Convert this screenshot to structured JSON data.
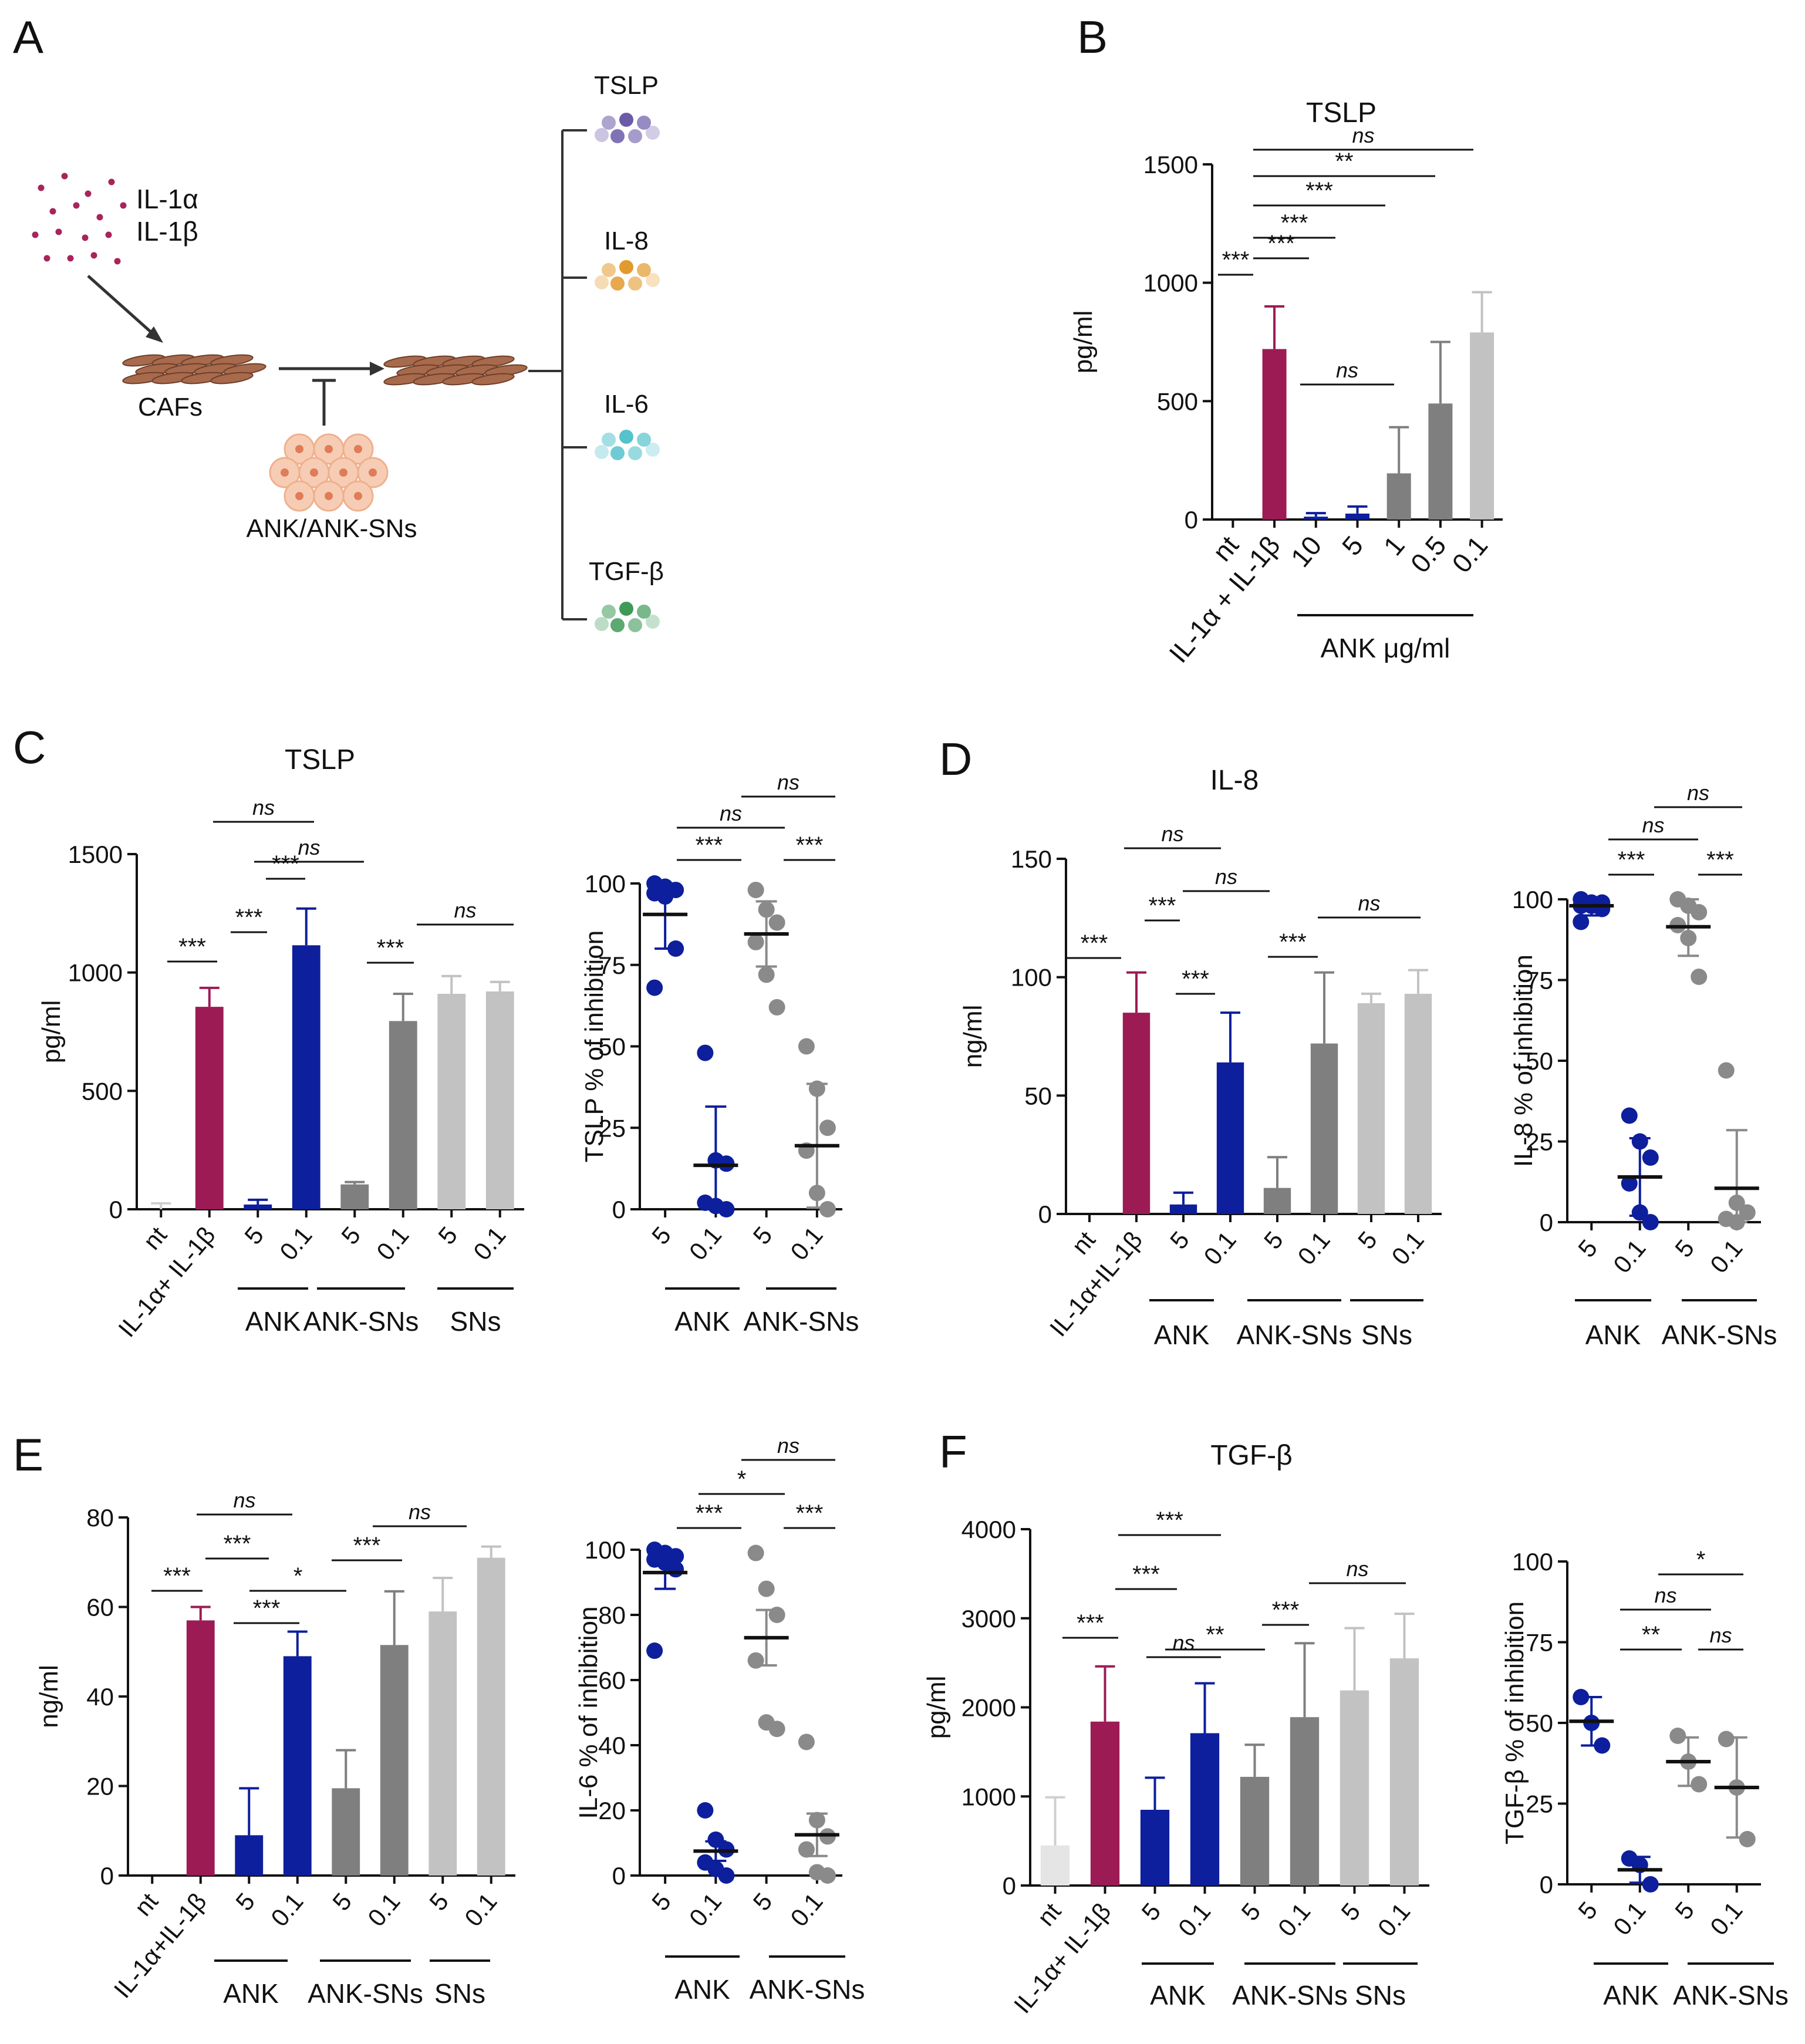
{
  "colors": {
    "nt": "#e5e5e5",
    "il1": "#9c1b54",
    "ank": "#0d1f9c",
    "anksn": "#7f7f7f",
    "sn": "#c2c2c2",
    "axis": "#111111",
    "gray_dot": "#8a8a8a"
  },
  "panel_a": {
    "letter": "A",
    "cytokine1": "IL-1α",
    "cytokine2": "IL-1β",
    "caf_label": "CAFs",
    "treatment_label": "ANK/ANK-SNs",
    "outputs": [
      {
        "label": "TSLP",
        "color": "#6a5aa8"
      },
      {
        "label": "IL-8",
        "color": "#e39a2c"
      },
      {
        "label": "IL-6",
        "color": "#55c2cc"
      },
      {
        "label": "TGF-β",
        "color": "#3f9a58"
      }
    ]
  },
  "chart_data": [
    {
      "id": "B",
      "type": "bar",
      "letter": "B",
      "title": "TSLP",
      "ylabel": "pg/ml",
      "ylim": [
        0,
        1500
      ],
      "yticks": [
        "0",
        "500",
        "1000",
        "1500"
      ],
      "categories": [
        "nt",
        "IL-1α + IL-1β",
        "10",
        "5",
        "1",
        "0.5",
        "0.1"
      ],
      "values": [
        0,
        720,
        12,
        25,
        195,
        490,
        790
      ],
      "errors": [
        0,
        180,
        15,
        30,
        195,
        260,
        170
      ],
      "groups": [
        {
          "label": "ANK μg/ml"
        }
      ],
      "sig": [
        {
          "label": "***",
          "italic": false
        },
        {
          "label": "***",
          "italic": false
        },
        {
          "label": "***",
          "italic": false
        },
        {
          "label": "***",
          "italic": false
        },
        {
          "label": "**",
          "italic": false
        },
        {
          "label": "ns",
          "italic": true
        },
        {
          "label": "ns",
          "italic": true
        }
      ]
    },
    {
      "id": "C1",
      "type": "bar",
      "letter": "C",
      "title": "TSLP",
      "ylabel": "pg/ml",
      "ylim": [
        0,
        1500
      ],
      "yticks": [
        "0",
        "500",
        "1000",
        "1500"
      ],
      "categories": [
        "nt",
        "IL-1α+ IL-1β",
        "5",
        "0.1",
        "5",
        "0.1",
        "5",
        "0.1"
      ],
      "values": [
        0,
        855,
        20,
        1115,
        105,
        795,
        910,
        920
      ],
      "errors": [
        25,
        80,
        20,
        155,
        10,
        115,
        75,
        40
      ],
      "groups": [
        {
          "label": "ANK"
        },
        {
          "label": "ANK-SNs"
        },
        {
          "label": "SNs"
        }
      ],
      "sig": [
        {
          "label": "***",
          "italic": false
        },
        {
          "label": "***",
          "italic": false
        },
        {
          "label": "***",
          "italic": false
        },
        {
          "label": "ns",
          "italic": true
        },
        {
          "label": "ns",
          "italic": true
        },
        {
          "label": "***",
          "italic": false
        },
        {
          "label": "ns",
          "italic": true
        }
      ]
    },
    {
      "id": "C2",
      "type": "scatter",
      "ylabel": "TSLP % of inhibition",
      "ylim": [
        0,
        100
      ],
      "yticks": [
        "0",
        "25",
        "50",
        "75",
        "100"
      ],
      "categories": [
        "5",
        "0.1",
        "5",
        "0.1"
      ],
      "points": [
        [
          100,
          99,
          98,
          97,
          96,
          80,
          68
        ],
        [
          48,
          15,
          14,
          2,
          1,
          0
        ],
        [
          98,
          92,
          88,
          82,
          72,
          62
        ],
        [
          50,
          37,
          25,
          18,
          5,
          0
        ]
      ],
      "means": [
        90.5,
        13.5,
        84.5,
        19.5
      ],
      "sd": [
        10.5,
        18,
        10,
        19
      ],
      "groups": [
        {
          "label": "ANK"
        },
        {
          "label": "ANK-SNs"
        }
      ],
      "sig": [
        {
          "label": "***",
          "italic": false
        },
        {
          "label": "***",
          "italic": false
        },
        {
          "label": "ns",
          "italic": true
        },
        {
          "label": "ns",
          "italic": true
        }
      ]
    },
    {
      "id": "D1",
      "type": "bar",
      "letter": "D",
      "title": "IL-8",
      "ylabel": "ng/ml",
      "ylim": [
        0,
        150
      ],
      "yticks": [
        "0",
        "50",
        "100",
        "150"
      ],
      "categories": [
        "nt",
        "IL-1α+IL-1β",
        "5",
        "0.1",
        "5",
        "0.1",
        "5",
        "0.1"
      ],
      "values": [
        0,
        85,
        4,
        64,
        11,
        72,
        89,
        93
      ],
      "errors": [
        0,
        17,
        5,
        21,
        13,
        30,
        4,
        10
      ],
      "groups": [
        {
          "label": "ANK"
        },
        {
          "label": "ANK-SNs"
        },
        {
          "label": "SNs"
        }
      ],
      "sig": [
        {
          "label": "***",
          "italic": false
        },
        {
          "label": "***",
          "italic": false
        },
        {
          "label": "***",
          "italic": false
        },
        {
          "label": "ns",
          "italic": true
        },
        {
          "label": "ns",
          "italic": true
        },
        {
          "label": "***",
          "italic": false
        },
        {
          "label": "ns",
          "italic": true
        }
      ]
    },
    {
      "id": "D2",
      "type": "scatter",
      "ylabel": "IL-8 % of inhibition",
      "ylim": [
        0,
        100
      ],
      "yticks": [
        "0",
        "25",
        "50",
        "75",
        "100"
      ],
      "categories": [
        "5",
        "0.1",
        "5",
        "0.1"
      ],
      "points": [
        [
          100,
          99,
          99,
          98,
          98,
          97,
          93
        ],
        [
          33,
          25,
          20,
          12,
          3,
          0
        ],
        [
          100,
          98,
          96,
          92,
          88,
          76
        ],
        [
          47,
          6,
          3,
          1,
          0
        ]
      ],
      "means": [
        98,
        14,
        91.5,
        10.5
      ],
      "sd": [
        3,
        12,
        9,
        18
      ],
      "groups": [
        {
          "label": "ANK"
        },
        {
          "label": "ANK-SNs"
        }
      ],
      "sig": [
        {
          "label": "***",
          "italic": false
        },
        {
          "label": "***",
          "italic": false
        },
        {
          "label": "ns",
          "italic": true
        },
        {
          "label": "ns",
          "italic": true
        }
      ]
    },
    {
      "id": "E1",
      "type": "bar",
      "letter": "E",
      "title": "",
      "ylabel": "ng/ml",
      "ylim": [
        0,
        80
      ],
      "yticks": [
        "0",
        "20",
        "40",
        "60",
        "80"
      ],
      "categories": [
        "nt",
        "IL-1α+IL-1β",
        "5",
        "0.1",
        "5",
        "0.1",
        "5",
        "0.1"
      ],
      "values": [
        0,
        57,
        9,
        49,
        19.5,
        51.5,
        59,
        71
      ],
      "errors": [
        0,
        3,
        10.5,
        5.5,
        8.5,
        12,
        7.5,
        2.5
      ],
      "groups": [
        {
          "label": "ANK"
        },
        {
          "label": "ANK-SNs"
        },
        {
          "label": "SNs"
        }
      ],
      "sig": [
        {
          "label": "***",
          "italic": false
        },
        {
          "label": "***",
          "italic": false
        },
        {
          "label": "***",
          "italic": false
        },
        {
          "label": "*",
          "italic": false
        },
        {
          "label": "ns",
          "italic": true
        },
        {
          "label": "***",
          "italic": false
        },
        {
          "label": "ns",
          "italic": true
        }
      ]
    },
    {
      "id": "E2",
      "type": "scatter",
      "ylabel": "IL-6 % of inhibition",
      "ylim": [
        0,
        100
      ],
      "yticks": [
        "0",
        "20",
        "40",
        "60",
        "80",
        "100"
      ],
      "categories": [
        "5",
        "0.1",
        "5",
        "0.1"
      ],
      "points": [
        [
          100,
          99,
          98,
          97,
          96,
          94,
          69
        ],
        [
          20,
          11,
          8,
          4,
          2,
          0
        ],
        [
          99,
          88,
          80,
          66,
          47,
          45
        ],
        [
          41,
          17,
          12,
          8,
          1,
          0
        ]
      ],
      "means": [
        93,
        7.5,
        73,
        12.5
      ],
      "sd": [
        5,
        3,
        8.5,
        6.5
      ],
      "groups": [
        {
          "label": "ANK"
        },
        {
          "label": "ANK-SNs"
        }
      ],
      "sig": [
        {
          "label": "***",
          "italic": false
        },
        {
          "label": "***",
          "italic": false
        },
        {
          "label": "*",
          "italic": false
        },
        {
          "label": "ns",
          "italic": true
        }
      ]
    },
    {
      "id": "F1",
      "type": "bar",
      "letter": "F",
      "title": "TGF-β",
      "ylabel": "pg/ml",
      "ylim": [
        0,
        4000
      ],
      "yticks": [
        "0",
        "1000",
        "2000",
        "3000",
        "4000"
      ],
      "categories": [
        "nt",
        "IL-1α+ IL-1β",
        "5",
        "0.1",
        "5",
        "0.1",
        "5",
        "0.1"
      ],
      "values": [
        450,
        1840,
        850,
        1710,
        1220,
        1890,
        2190,
        2550
      ],
      "errors": [
        540,
        620,
        360,
        560,
        360,
        830,
        700,
        500
      ],
      "groups": [
        {
          "label": "ANK"
        },
        {
          "label": "ANK-SNs"
        },
        {
          "label": "SNs"
        }
      ],
      "sig": [
        {
          "label": "***",
          "italic": false
        },
        {
          "label": "***",
          "italic": false
        },
        {
          "label": "***",
          "italic": false
        },
        {
          "label": "ns",
          "italic": true
        },
        {
          "label": "**",
          "italic": false
        },
        {
          "label": "***",
          "italic": false
        },
        {
          "label": "ns",
          "italic": true
        }
      ]
    },
    {
      "id": "F2",
      "type": "scatter",
      "ylabel": "TGF-β % of inhibition",
      "ylim": [
        0,
        100
      ],
      "yticks": [
        "0",
        "25",
        "50",
        "75",
        "100"
      ],
      "categories": [
        "5",
        "0.1",
        "5",
        "0.1"
      ],
      "points": [
        [
          58,
          50,
          43
        ],
        [
          8,
          6,
          0
        ],
        [
          46,
          38,
          31
        ],
        [
          45,
          30,
          14
        ]
      ],
      "means": [
        50.5,
        4.5,
        38,
        30
      ],
      "sd": [
        7.5,
        4,
        7.5,
        15.5
      ],
      "groups": [
        {
          "label": "ANK"
        },
        {
          "label": "ANK-SNs"
        }
      ],
      "sig": [
        {
          "label": "**",
          "italic": false
        },
        {
          "label": "ns",
          "italic": true
        },
        {
          "label": "ns",
          "italic": true
        },
        {
          "label": "*",
          "italic": false
        }
      ]
    }
  ]
}
